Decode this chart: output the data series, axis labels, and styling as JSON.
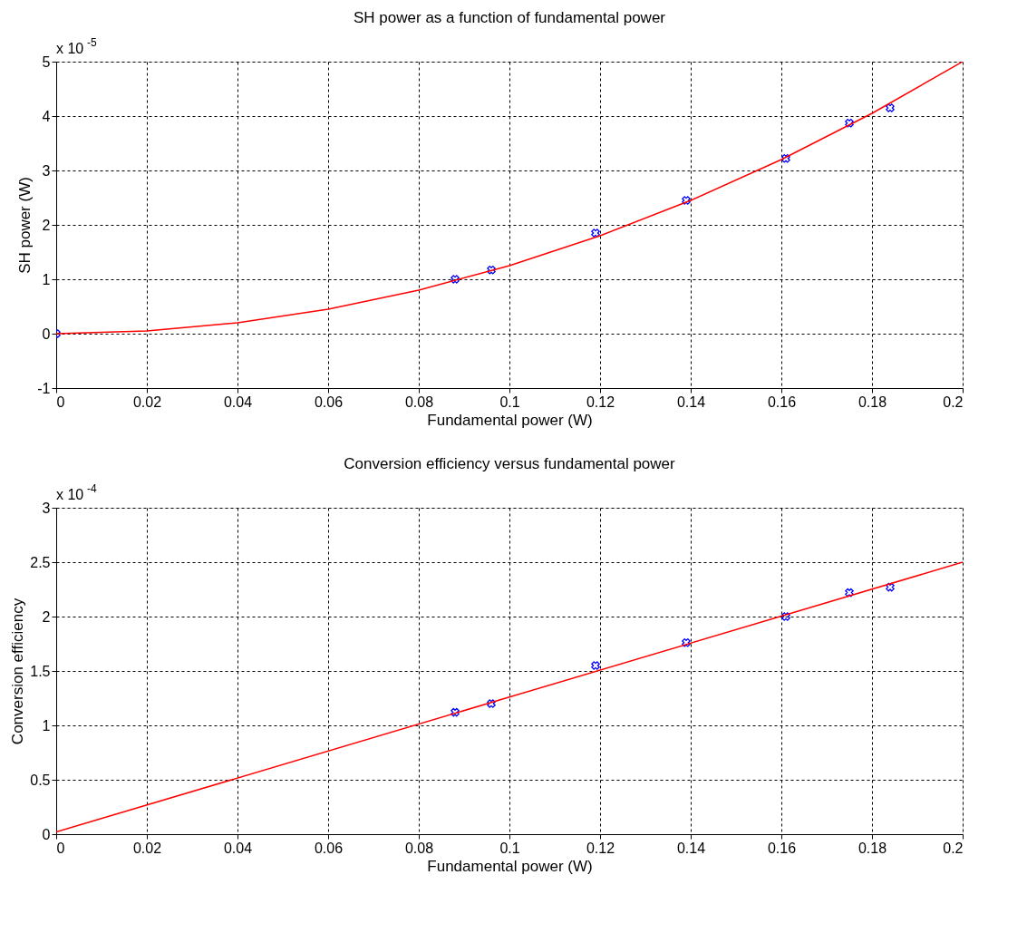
{
  "chart_data": [
    {
      "type": "scatter",
      "title": "SH power as a function of fundamental power",
      "xlabel": "Fundamental power (W)",
      "ylabel": "SH power (W)",
      "annotations": [
        "x 10$^{-5}$"
      ],
      "xlim": [
        0,
        0.2
      ],
      "xticks": [
        0,
        0.02,
        0.04,
        0.06,
        0.08,
        0.1,
        0.12,
        0.14,
        0.16,
        0.18,
        0.2
      ],
      "ylim": [
        -1,
        5
      ],
      "yticks": [
        -1,
        0,
        1,
        2,
        3,
        4,
        5
      ],
      "grid": true,
      "series": [
        {
          "marker": "cross",
          "color": "#0000ff",
          "x": [
            0,
            0.088,
            0.096,
            0.119,
            0.139,
            0.161,
            0.175,
            0.184
          ],
          "values": [
            0,
            1.0,
            1.17,
            1.85,
            2.45,
            3.22,
            3.87,
            4.15
          ]
        },
        {
          "type": "line",
          "color": "#ff0000",
          "x": [
            0,
            0.02,
            0.04,
            0.06,
            0.08,
            0.1,
            0.12,
            0.14,
            0.16,
            0.18,
            0.2
          ],
          "values": [
            0,
            0.05,
            0.2,
            0.45,
            0.8,
            1.25,
            1.8,
            2.45,
            3.2,
            4.05,
            5.0
          ]
        }
      ]
    },
    {
      "type": "scatter",
      "title": "Conversion efficiency versus fundamental power",
      "xlabel": "Fundamental power (W)",
      "ylabel": "Conversion efficiency",
      "annotations": [
        "x 10$^{-4}$"
      ],
      "xlim": [
        0,
        0.2
      ],
      "xticks": [
        0,
        0.02,
        0.04,
        0.06,
        0.08,
        0.1,
        0.12,
        0.14,
        0.16,
        0.18,
        0.2
      ],
      "ylim": [
        0,
        3
      ],
      "yticks": [
        0,
        0.5,
        1,
        1.5,
        2,
        2.5,
        3
      ],
      "grid": true,
      "series": [
        {
          "marker": "cross",
          "color": "#0000ff",
          "x": [
            0.088,
            0.096,
            0.119,
            0.139,
            0.161,
            0.175,
            0.184
          ],
          "values": [
            1.12,
            1.2,
            1.55,
            1.76,
            2.0,
            2.22,
            2.27
          ]
        },
        {
          "type": "line",
          "color": "#ff0000",
          "x": [
            0,
            0.1,
            0.2
          ],
          "values": [
            0.02,
            1.26,
            2.5
          ]
        }
      ]
    }
  ]
}
